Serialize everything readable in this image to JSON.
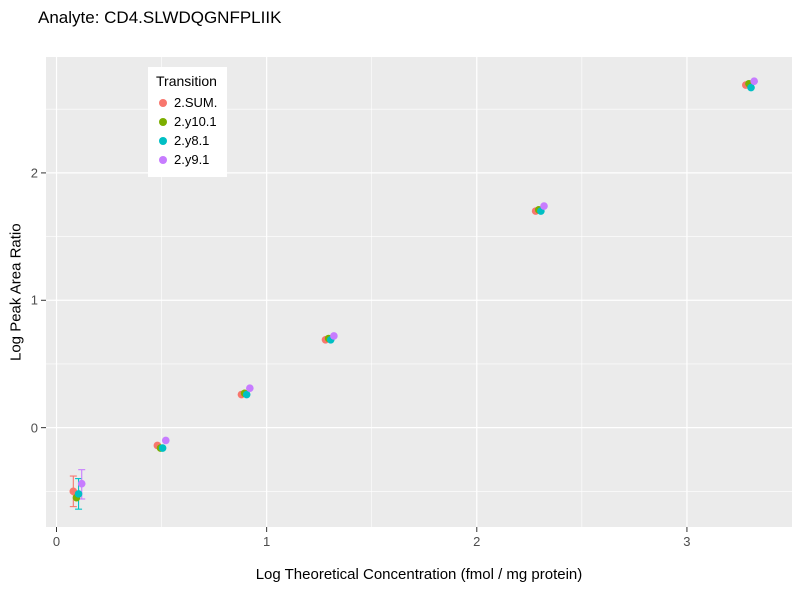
{
  "title": "Analyte: CD4.SLWDQGNFPLIIK",
  "chart_data": {
    "type": "scatter",
    "title": "Analyte: CD4.SLWDQGNFPLIIK",
    "xlabel": "Log Theoretical Concentration (fmol / mg protein)",
    "ylabel": "Log Peak Area Ratio",
    "xlim": [
      -0.05,
      3.5
    ],
    "ylim": [
      -0.78,
      2.91
    ],
    "x_major_ticks": [
      0,
      1,
      2,
      3
    ],
    "x_minor_ticks": [
      0.5,
      1.5,
      2.5
    ],
    "y_major_ticks": [
      0,
      1,
      2
    ],
    "y_minor_ticks": [
      -0.5,
      0.5,
      1.5,
      2.5
    ],
    "panel_bg": "#EBEBEB",
    "grid_color": "#FFFFFF",
    "tick_color": "#333333",
    "legend_title": "Transition",
    "legend_position": "inside-top-left",
    "x": [
      0.1,
      0.5,
      0.9,
      1.3,
      2.3,
      3.3
    ],
    "series": [
      {
        "name": "2.SUM.",
        "color": "#F8766D",
        "dodge": -0.02,
        "y": [
          -0.5,
          -0.14,
          0.26,
          0.69,
          1.7,
          2.69
        ],
        "err": [
          [
            -0.62,
            -0.38
          ],
          null,
          null,
          null,
          null,
          null
        ]
      },
      {
        "name": "2.y10.1",
        "color": "#7CAE00",
        "dodge": -0.005,
        "y": [
          -0.55,
          -0.16,
          0.27,
          0.7,
          1.71,
          2.7
        ],
        "err": [
          null,
          null,
          null,
          null,
          null,
          null
        ]
      },
      {
        "name": "2.y8.1",
        "color": "#00BFC4",
        "dodge": 0.005,
        "y": [
          -0.52,
          -0.16,
          0.26,
          0.69,
          1.7,
          2.67
        ],
        "err": [
          [
            -0.64,
            -0.4
          ],
          null,
          null,
          null,
          null,
          null
        ]
      },
      {
        "name": "2.y9.1",
        "color": "#C77CFF",
        "dodge": 0.02,
        "y": [
          -0.44,
          -0.1,
          0.31,
          0.72,
          1.74,
          2.72
        ],
        "err": [
          [
            -0.56,
            -0.33
          ],
          null,
          null,
          null,
          null,
          null
        ]
      }
    ]
  }
}
